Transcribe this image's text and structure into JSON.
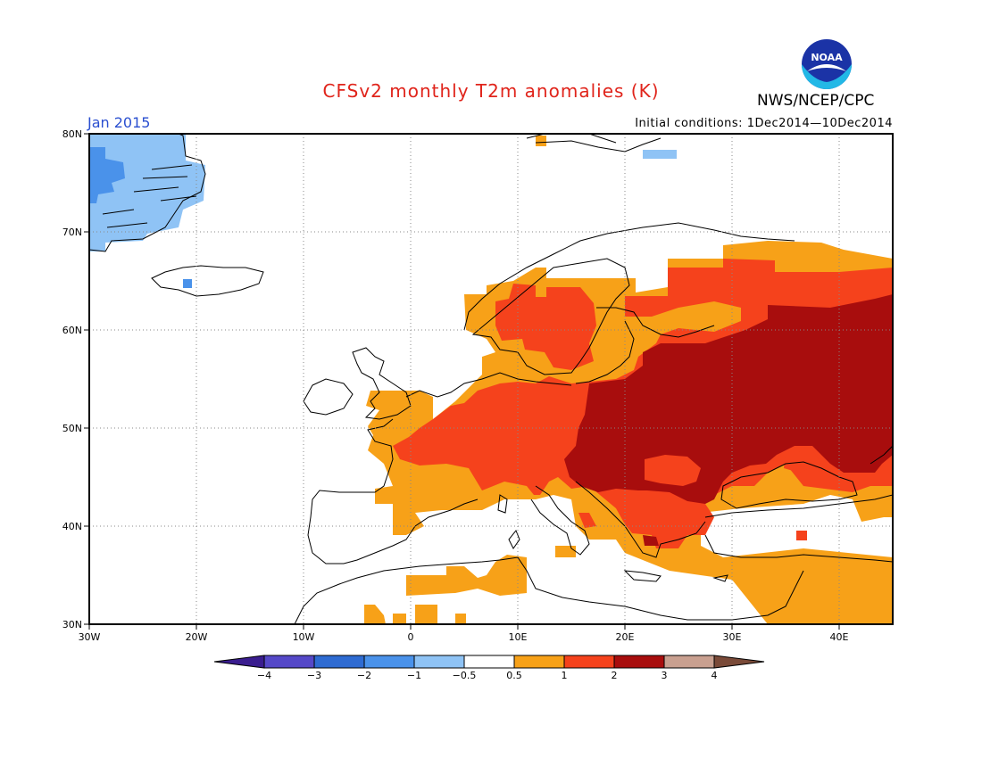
{
  "title": "CFSv2 monthly T2m anomalies (K)",
  "organization": "NWS/NCEP/CPC",
  "logo_text": "NOAA",
  "forecast_month": "Jan 2015",
  "initial_conditions": "Initial conditions: 1Dec2014—10Dec2014",
  "map": {
    "lon_range": [
      -30,
      45
    ],
    "lat_range": [
      30,
      80
    ],
    "lat_ticks": [
      "30N",
      "40N",
      "50N",
      "60N",
      "70N",
      "80N"
    ],
    "lon_ticks": [
      "30W",
      "20W",
      "10W",
      "0",
      "10E",
      "20E",
      "30E",
      "40E"
    ],
    "grid": "dotted"
  },
  "colorbar": {
    "labels": [
      "−4",
      "−3",
      "−2",
      "−1",
      "−0.5",
      "0.5",
      "1",
      "2",
      "3",
      "4"
    ],
    "colors": [
      "#3a1d8f",
      "#5548c8",
      "#2e6bd2",
      "#4a92ea",
      "#8fc3f5",
      "#ffffff",
      "#f7a118",
      "#f5421c",
      "#a80d0d",
      "#c9a090",
      "#7a4a38"
    ]
  },
  "anomaly_regions": [
    {
      "class": "0.5 to 1",
      "color": "#f7a118",
      "areas": [
        "Western Europe",
        "Scandinavia",
        "Turkey",
        "North Africa"
      ]
    },
    {
      "class": "1 to 2",
      "color": "#f5421c",
      "areas": [
        "France",
        "Germany",
        "Southern Scandinavia",
        "Northern Russia"
      ]
    },
    {
      "class": "2 to 3",
      "color": "#a80d0d",
      "areas": [
        "Eastern Europe",
        "Western Russia",
        "Balkans"
      ]
    },
    {
      "class": "-1 to -0.5",
      "color": "#8fc3f5",
      "areas": [
        "Greenland"
      ]
    }
  ]
}
